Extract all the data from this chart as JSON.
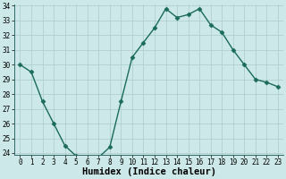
{
  "x": [
    0,
    1,
    2,
    3,
    4,
    5,
    6,
    7,
    8,
    9,
    10,
    11,
    12,
    13,
    14,
    15,
    16,
    17,
    18,
    19,
    20,
    21,
    22,
    23
  ],
  "y": [
    30,
    29.5,
    27.5,
    26,
    24.5,
    23.8,
    23.7,
    23.7,
    24.4,
    27.5,
    30.5,
    31.5,
    32.5,
    33.8,
    33.2,
    33.4,
    33.8,
    32.7,
    32.2,
    31.0,
    30.0,
    29.0,
    28.8,
    28.5
  ],
  "line_color": "#1a6b5a",
  "marker": "D",
  "markersize": 2.5,
  "bg_color": "#cce8e8",
  "grid_color": "#aacccc",
  "xlabel": "Humidex (Indice chaleur)",
  "ylim": [
    24,
    34
  ],
  "xlim": [
    -0.5,
    23.5
  ],
  "yticks": [
    24,
    25,
    26,
    27,
    28,
    29,
    30,
    31,
    32,
    33,
    34
  ],
  "xticks": [
    0,
    1,
    2,
    3,
    4,
    5,
    6,
    7,
    8,
    9,
    10,
    11,
    12,
    13,
    14,
    15,
    16,
    17,
    18,
    19,
    20,
    21,
    22,
    23
  ],
  "tick_fontsize": 5.5,
  "xlabel_fontsize": 7.5,
  "linewidth": 1.0
}
